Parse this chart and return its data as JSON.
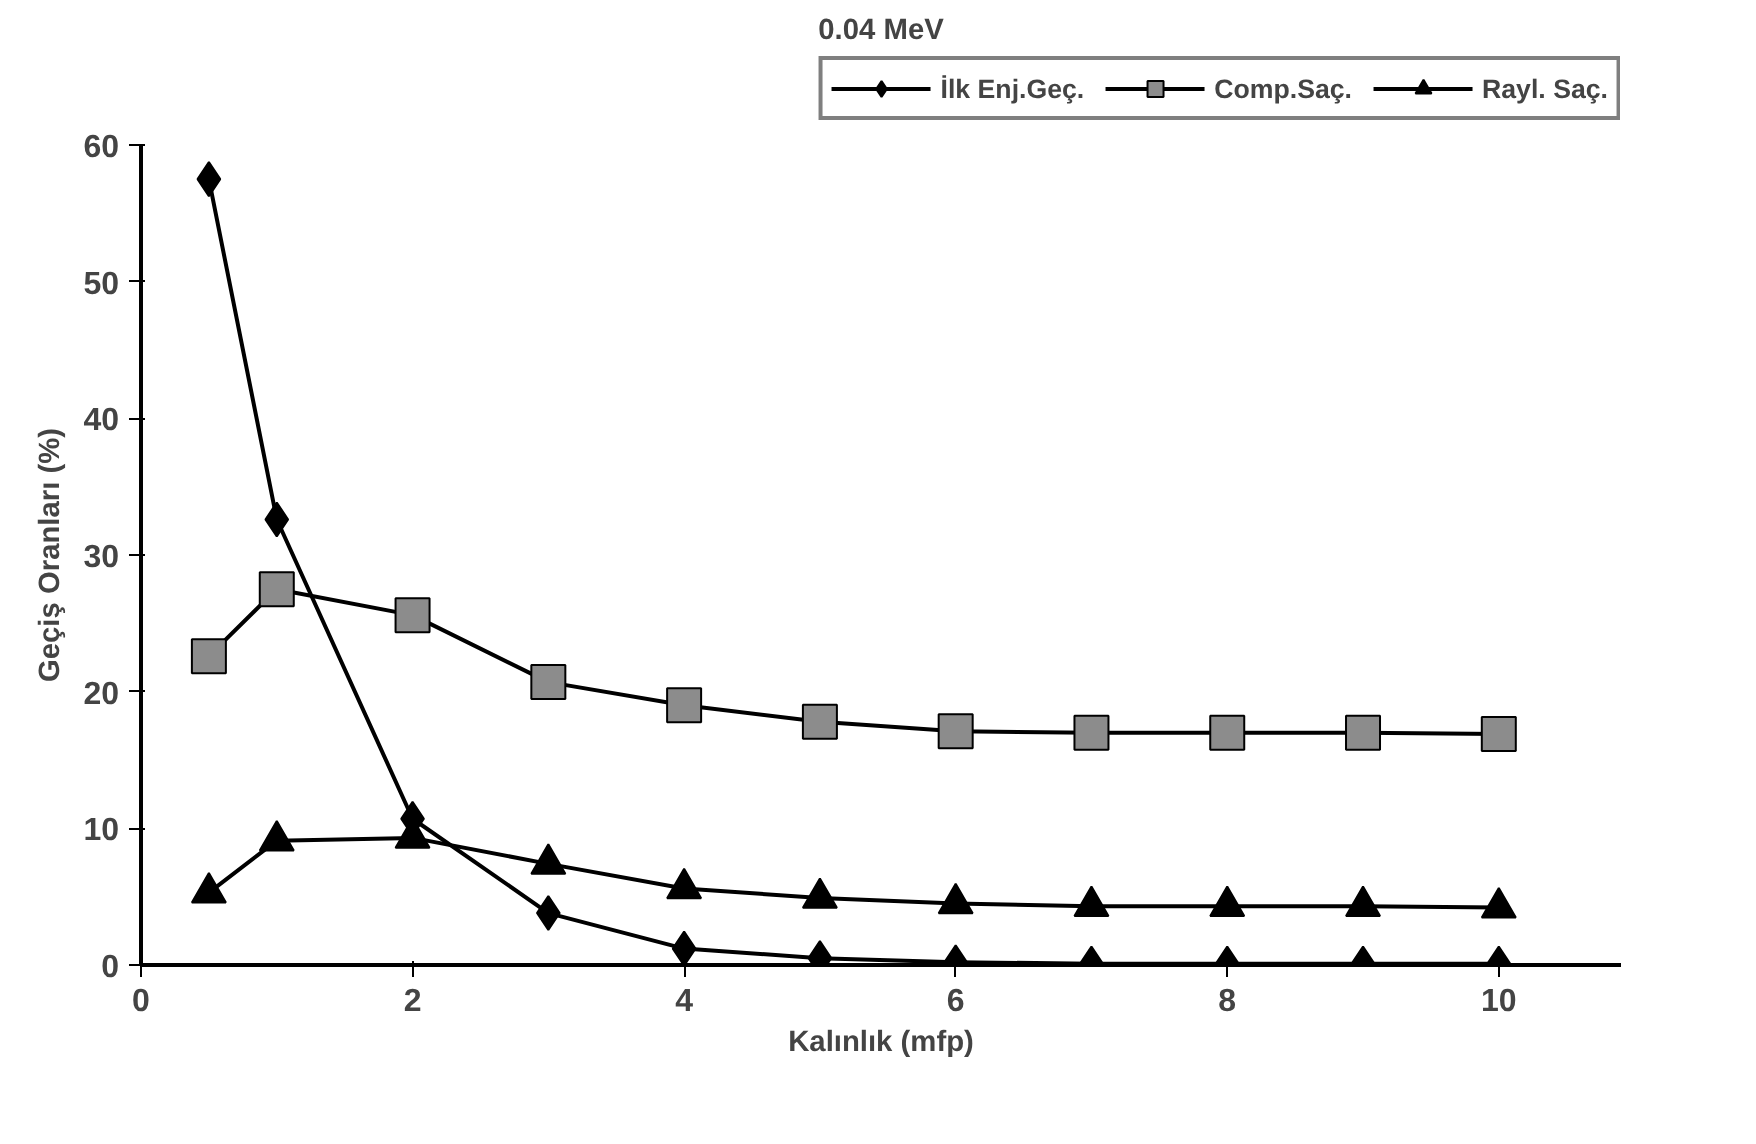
{
  "chart_data": {
    "type": "line",
    "title": "0.04 MeV",
    "xlabel": "Kalınlık (mfp)",
    "ylabel": "Geçiş Oranları (%)",
    "x": [
      0.5,
      1,
      2,
      3,
      4,
      5,
      6,
      7,
      8,
      9,
      10
    ],
    "series": [
      {
        "name": "İlk Enj.Geç.",
        "color": "#000000",
        "marker": "diamond",
        "values": [
          57.5,
          32.6,
          10.7,
          3.8,
          1.2,
          0.5,
          0.2,
          0.1,
          0.1,
          0.1,
          0.1
        ]
      },
      {
        "name": "Comp.Saç.",
        "color": "#8c8c8c",
        "marker": "square",
        "values": [
          22.6,
          27.5,
          25.6,
          20.7,
          19.0,
          17.8,
          17.1,
          17.0,
          17.0,
          17.0,
          16.9
        ]
      },
      {
        "name": "Rayl. Saç.",
        "color": "#000000",
        "marker": "triangle",
        "values": [
          5.3,
          9.1,
          9.3,
          7.4,
          5.6,
          4.9,
          4.5,
          4.3,
          4.3,
          4.3,
          4.2
        ]
      }
    ],
    "xlim": [
      0,
      10.9
    ],
    "ylim": [
      0,
      60
    ],
    "xticks": [
      0,
      2,
      4,
      6,
      8,
      10
    ],
    "yticks": [
      0,
      10,
      20,
      30,
      40,
      50,
      60
    ],
    "grid": false,
    "legend": "top right",
    "line_style": "solid"
  }
}
